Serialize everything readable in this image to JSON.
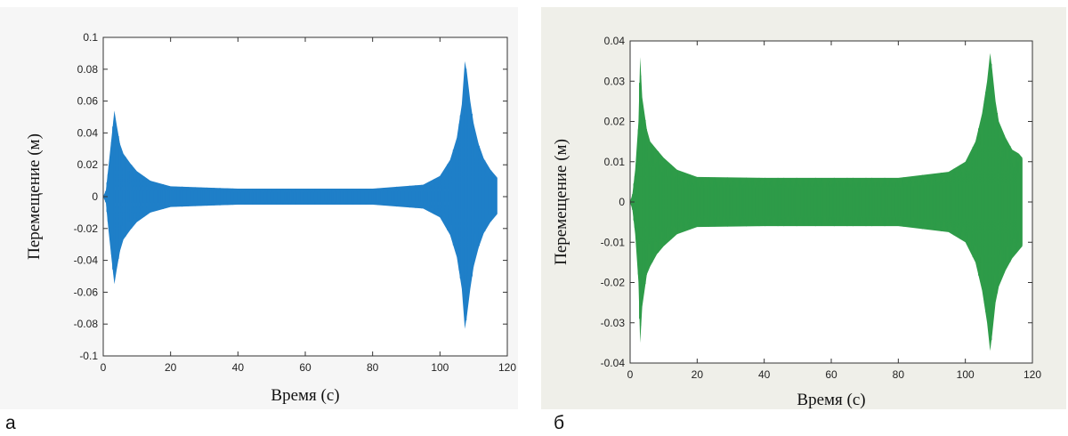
{
  "chart_data": [
    {
      "id": "a",
      "type": "line",
      "panel_label": "а",
      "xlabel": "Время (с)",
      "ylabel": "Перемещение (м)",
      "xlim": [
        0,
        120
      ],
      "ylim": [
        -0.1,
        0.1
      ],
      "xticks": [
        0,
        20,
        40,
        60,
        80,
        100,
        120
      ],
      "yticks": [
        0.1,
        0.08,
        0.06,
        0.04,
        0.02,
        0,
        -0.02,
        -0.04,
        -0.06,
        -0.08,
        -0.1
      ],
      "ytick_labels": [
        "0.1",
        "0.08",
        "0.06",
        "0.04",
        "0.02",
        "0",
        "-0.02",
        "-0.04",
        "-0.06",
        "-0.08",
        "-0.1"
      ],
      "series": [
        {
          "color": "#1f7fc8",
          "t": [
            0,
            0.8,
            1.5,
            2.5,
            3.3,
            4,
            5,
            6,
            8,
            10,
            14,
            20,
            40,
            60,
            80,
            95,
            100,
            103,
            105,
            106.5,
            107.4,
            108,
            109,
            110,
            111.5,
            113,
            115,
            117
          ],
          "upper": [
            0,
            0.004,
            0.018,
            0.038,
            0.054,
            0.045,
            0.033,
            0.027,
            0.021,
            0.016,
            0.01,
            0.0065,
            0.005,
            0.005,
            0.005,
            0.0075,
            0.013,
            0.023,
            0.037,
            0.058,
            0.085,
            0.078,
            0.06,
            0.046,
            0.033,
            0.024,
            0.017,
            0.012
          ],
          "lower": [
            0,
            -0.004,
            -0.02,
            -0.04,
            -0.055,
            -0.046,
            -0.034,
            -0.027,
            -0.021,
            -0.016,
            -0.01,
            -0.0065,
            -0.005,
            -0.005,
            -0.005,
            -0.0075,
            -0.013,
            -0.024,
            -0.038,
            -0.058,
            -0.083,
            -0.075,
            -0.058,
            -0.044,
            -0.032,
            -0.023,
            -0.016,
            -0.011
          ]
        }
      ]
    },
    {
      "id": "b",
      "type": "line",
      "panel_label": "б",
      "xlabel": "Время (с)",
      "ylabel": "Перемещение (м)",
      "xlim": [
        0,
        120
      ],
      "ylim": [
        -0.04,
        0.04
      ],
      "xticks": [
        0,
        20,
        40,
        60,
        80,
        100,
        120
      ],
      "yticks": [
        0.04,
        0.03,
        0.02,
        0.01,
        0,
        -0.01,
        -0.02,
        -0.03,
        -0.04
      ],
      "ytick_labels": [
        "0.04",
        "0.03",
        "0.02",
        "0.01",
        "0",
        "-0.01",
        "-0.02",
        "-0.03",
        "-0.04"
      ],
      "series": [
        {
          "color": "#2e9b48",
          "t": [
            0,
            0.7,
            1.5,
            2.5,
            3,
            3.6,
            4.3,
            5,
            6,
            8,
            10,
            14,
            20,
            40,
            60,
            80,
            95,
            100,
            103,
            105,
            106.5,
            107.4,
            108,
            109,
            110,
            112,
            114,
            116,
            117
          ],
          "upper": [
            0,
            0.002,
            0.008,
            0.02,
            0.036,
            0.026,
            0.022,
            0.018,
            0.015,
            0.013,
            0.011,
            0.008,
            0.0062,
            0.006,
            0.006,
            0.006,
            0.0075,
            0.01,
            0.015,
            0.022,
            0.03,
            0.037,
            0.033,
            0.025,
            0.02,
            0.016,
            0.013,
            0.012,
            0.011
          ],
          "lower": [
            0,
            -0.002,
            -0.008,
            -0.02,
            -0.035,
            -0.026,
            -0.022,
            -0.018,
            -0.016,
            -0.013,
            -0.011,
            -0.008,
            -0.0062,
            -0.006,
            -0.006,
            -0.006,
            -0.0075,
            -0.01,
            -0.015,
            -0.022,
            -0.03,
            -0.037,
            -0.033,
            -0.025,
            -0.021,
            -0.017,
            -0.014,
            -0.012,
            -0.011
          ]
        }
      ]
    }
  ]
}
